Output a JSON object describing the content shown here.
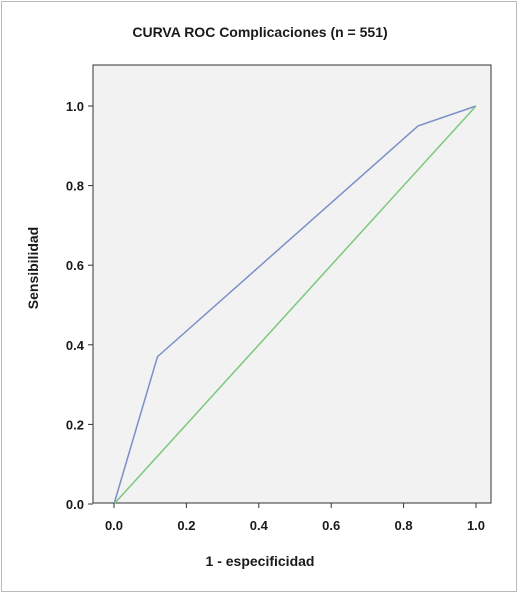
{
  "chart_data": {
    "type": "line",
    "title": "CURVA ROC Complicaciones (n = 551)",
    "xlabel": "1 - especificidad",
    "ylabel": "Sensibilidad",
    "xlim": [
      0.0,
      1.0
    ],
    "ylim": [
      0.0,
      1.0
    ],
    "x_ticks": [
      "0.0",
      "0.2",
      "0.4",
      "0.6",
      "0.8",
      "1.0"
    ],
    "y_ticks": [
      "0.0",
      "0.2",
      "0.4",
      "0.6",
      "0.8",
      "1.0"
    ],
    "grid": false,
    "legend": "none",
    "series": [
      {
        "color": "#7b8fc8",
        "x": [
          0.0,
          0.12,
          0.84,
          1.0
        ],
        "y": [
          0.0,
          0.37,
          0.95,
          1.0
        ]
      },
      {
        "color": "#7dc87a",
        "x": [
          0.0,
          1.0
        ],
        "y": [
          0.0,
          1.0
        ]
      }
    ],
    "plot_background": "#f2f2f2",
    "axis_color": "#333333"
  }
}
